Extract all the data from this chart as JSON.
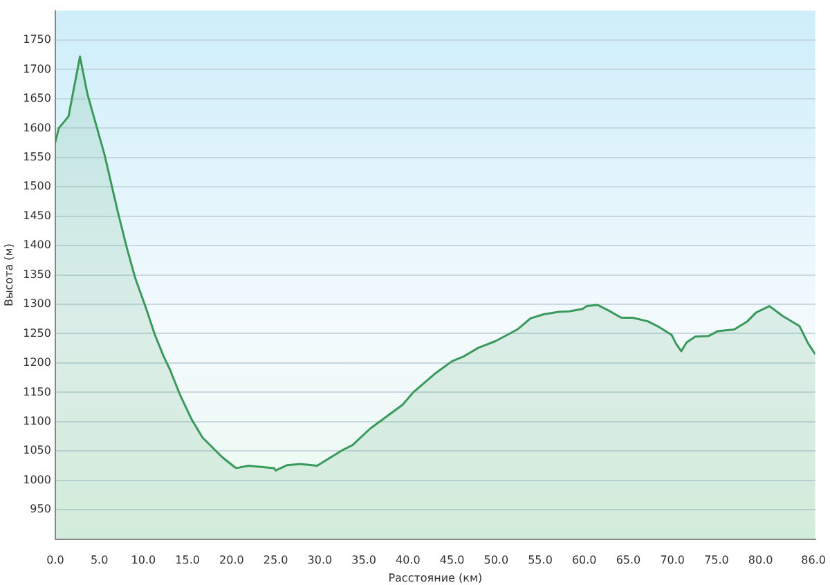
{
  "chart_data": {
    "type": "area",
    "xlabel": "Расстояние (км)",
    "ylabel": "Высота (м)",
    "xlim": [
      0,
      86.2
    ],
    "xticks": [
      {
        "value": 0,
        "label": "0.0"
      },
      {
        "value": 5,
        "label": "5.0"
      },
      {
        "value": 10,
        "label": "10.0"
      },
      {
        "value": 15,
        "label": "15.0"
      },
      {
        "value": 20,
        "label": "20.0"
      },
      {
        "value": 25,
        "label": "25.0"
      },
      {
        "value": 30,
        "label": "30.0"
      },
      {
        "value": 35,
        "label": "35.0"
      },
      {
        "value": 40,
        "label": "40.0"
      },
      {
        "value": 45,
        "label": "45.0"
      },
      {
        "value": 50,
        "label": "50.0"
      },
      {
        "value": 55,
        "label": "55.0"
      },
      {
        "value": 60,
        "label": "60.0"
      },
      {
        "value": 65,
        "label": "65.0"
      },
      {
        "value": 70,
        "label": "70.0"
      },
      {
        "value": 75,
        "label": "75.0"
      },
      {
        "value": 80,
        "label": "80.0"
      },
      {
        "value": 86,
        "label": "86.0"
      }
    ],
    "ylim": [
      900,
      1800
    ],
    "yticks": [
      950,
      1000,
      1050,
      1100,
      1150,
      1200,
      1250,
      1300,
      1350,
      1400,
      1450,
      1500,
      1550,
      1600,
      1650,
      1700,
      1750
    ],
    "grid": "y",
    "legend": false,
    "marker": "none",
    "line_style": "solid",
    "x": [
      0,
      0.4,
      1.5,
      2.8,
      3.65,
      5.6,
      7.1,
      8.1,
      9.06,
      10.3,
      11.3,
      12.3,
      13.0,
      14.2,
      15.5,
      16.7,
      17.7,
      18.9,
      20.4,
      20.6,
      21.9,
      24.8,
      25.0,
      26.3,
      27.8,
      29.7,
      32.5,
      33.7,
      35.7,
      39.4,
      40.6,
      43.0,
      45.0,
      46.3,
      48.0,
      49.9,
      50.9,
      52.4,
      53.9,
      55.4,
      57.1,
      58.3,
      59.8,
      60.3,
      61.5,
      62.8,
      64.2,
      65.5,
      67.2,
      68.4,
      69.9,
      70.4,
      71.0,
      71.6,
      72.6,
      74.1,
      75.1,
      77.0,
      78.5,
      79.5,
      81.0,
      82.5,
      84.4,
      85.4,
      86.2
    ],
    "series": [
      {
        "color": "#3a9a5c",
        "values": [
          1576,
          1600,
          1620,
          1722,
          1658,
          1554,
          1457,
          1397,
          1345,
          1293,
          1248,
          1211,
          1189,
          1144,
          1103,
          1073,
          1058,
          1040,
          1022,
          1021,
          1025,
          1021,
          1017,
          1026,
          1028,
          1025,
          1051,
          1060,
          1088,
          1129,
          1150,
          1181,
          1203,
          1211,
          1226,
          1237,
          1245,
          1257,
          1276,
          1283,
          1287,
          1288,
          1292,
          1297,
          1299,
          1289,
          1277,
          1277,
          1271,
          1262,
          1248,
          1233,
          1220,
          1235,
          1245,
          1246,
          1254,
          1257,
          1271,
          1286,
          1297,
          1280,
          1263,
          1233,
          1215
        ]
      }
    ]
  }
}
